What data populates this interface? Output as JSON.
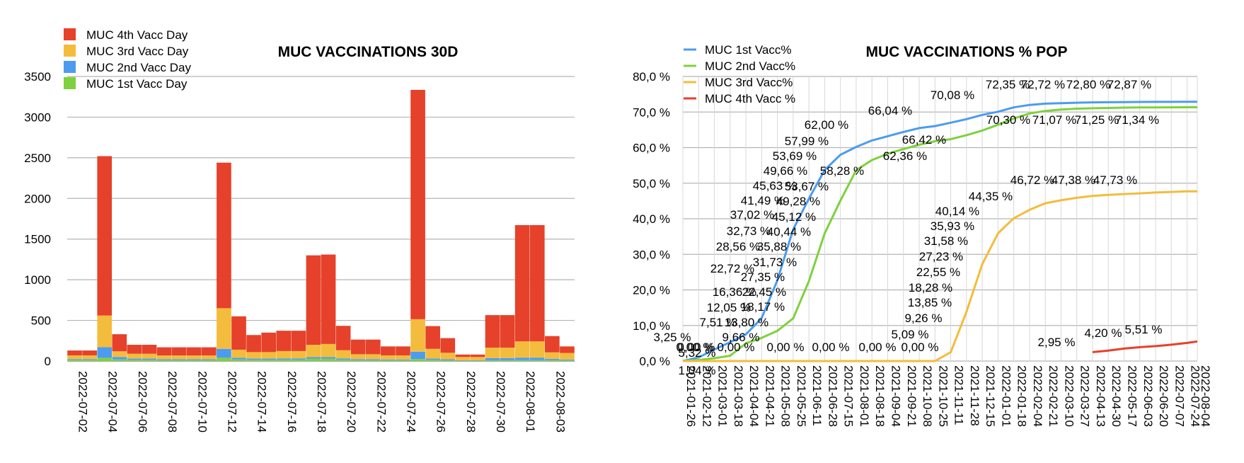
{
  "chart_data": [
    {
      "type": "bar",
      "stacked": true,
      "title": "MUC VACCINATIONS 30D",
      "ylim": [
        0,
        3500
      ],
      "yticks": [
        "0",
        "500",
        "1000",
        "1500",
        "2000",
        "2500",
        "3000",
        "3500"
      ],
      "xtick_labels": [
        "2022-07-02",
        "2022-07-04",
        "2022-07-06",
        "2022-07-08",
        "2022-07-10",
        "2022-07-12",
        "2022-07-14",
        "2022-07-16",
        "2022-07-18",
        "2022-07-20",
        "2022-07-22",
        "2022-07-24",
        "2022-07-26",
        "2022-07-28",
        "2022-07-30",
        "2022-08-01",
        "2022-08-03"
      ],
      "grid": true,
      "legend_position": "top-left",
      "categories": [
        "2022-07-02",
        "2022-07-03",
        "2022-07-04",
        "2022-07-05",
        "2022-07-06",
        "2022-07-07",
        "2022-07-08",
        "2022-07-09",
        "2022-07-10",
        "2022-07-11",
        "2022-07-12",
        "2022-07-13",
        "2022-07-14",
        "2022-07-15",
        "2022-07-16",
        "2022-07-17",
        "2022-07-18",
        "2022-07-19",
        "2022-07-20",
        "2022-07-21",
        "2022-07-22",
        "2022-07-23",
        "2022-07-24",
        "2022-07-25",
        "2022-07-26",
        "2022-07-27",
        "2022-07-28",
        "2022-07-29",
        "2022-07-30",
        "2022-07-31",
        "2022-08-01",
        "2022-08-02",
        "2022-08-03",
        "2022-08-04"
      ],
      "series": [
        {
          "name": "MUC 1st Vacc Day",
          "color": "#7ed13e",
          "values": [
            15,
            15,
            40,
            20,
            15,
            15,
            12,
            12,
            12,
            12,
            40,
            20,
            15,
            15,
            18,
            18,
            30,
            30,
            18,
            12,
            12,
            10,
            10,
            25,
            15,
            10,
            5,
            5,
            10,
            10,
            12,
            12,
            12,
            10
          ]
        },
        {
          "name": "MUC 2nd Vacc Day",
          "color": "#4b9cf0",
          "values": [
            10,
            10,
            130,
            30,
            15,
            15,
            12,
            12,
            12,
            12,
            110,
            20,
            15,
            15,
            15,
            15,
            20,
            20,
            15,
            12,
            12,
            10,
            10,
            90,
            15,
            12,
            5,
            5,
            25,
            25,
            30,
            30,
            15,
            10
          ]
        },
        {
          "name": "MUC 3rd Vacc Day",
          "color": "#f4bc3c",
          "values": [
            45,
            45,
            390,
            70,
            60,
            60,
            45,
            45,
            45,
            45,
            500,
            100,
            80,
            80,
            90,
            90,
            150,
            160,
            100,
            60,
            60,
            50,
            50,
            400,
            120,
            80,
            40,
            40,
            130,
            130,
            200,
            200,
            80,
            80
          ]
        },
        {
          "name": "MUC 4th Vacc Day",
          "color": "#e6412a",
          "values": [
            60,
            60,
            1960,
            210,
            110,
            110,
            100,
            100,
            100,
            100,
            1790,
            410,
            210,
            240,
            250,
            250,
            1100,
            1100,
            300,
            180,
            180,
            110,
            110,
            2820,
            280,
            180,
            30,
            30,
            400,
            400,
            1430,
            1430,
            200,
            80
          ]
        }
      ]
    },
    {
      "type": "line",
      "title": "MUC VACCINATIONS % POP",
      "ylim": [
        0,
        80
      ],
      "yticks": [
        "0,0 %",
        "10,0 %",
        "20,0 %",
        "30,0 %",
        "40,0 %",
        "50,0 %",
        "60,0 %",
        "70,0 %",
        "80,0 %"
      ],
      "xtick_labels": [
        "2021-01-26",
        "2021-02-12",
        "2021-03-01",
        "2021-03-18",
        "2021-04-04",
        "2021-04-21",
        "2021-05-08",
        "2021-05-25",
        "2021-06-11",
        "2021-06-28",
        "2021-07-15",
        "2021-08-01",
        "2021-08-18",
        "2021-09-04",
        "2021-09-21",
        "2021-10-08",
        "2021-10-25",
        "2021-11-11",
        "2021-11-28",
        "2021-12-15",
        "2022-01-01",
        "2022-01-18",
        "2022-02-04",
        "2022-02-21",
        "2022-03-10",
        "2022-03-27",
        "2022-04-13",
        "2022-04-30",
        "2022-05-17",
        "2022-06-03",
        "2022-06-20",
        "2022-07-07",
        "2022-07-24",
        "2022-08-04"
      ],
      "grid": true,
      "legend_position": "top-left",
      "series": [
        {
          "name": "MUC 1st Vacc%",
          "color": "#4b9cf0",
          "x": [
            "2021-01-26",
            "2021-02-12",
            "2021-03-01",
            "2021-03-18",
            "2021-04-04",
            "2021-04-21",
            "2021-05-08",
            "2021-05-25",
            "2021-06-11",
            "2021-06-28",
            "2021-07-15",
            "2021-08-01",
            "2021-08-18",
            "2021-09-04",
            "2021-09-21",
            "2021-10-08",
            "2021-10-25",
            "2021-11-11",
            "2021-11-28",
            "2021-12-15",
            "2022-01-01",
            "2022-01-18",
            "2022-02-04",
            "2022-02-21",
            "2022-03-10",
            "2022-03-27",
            "2022-04-13",
            "2022-04-30",
            "2022-05-17",
            "2022-06-03",
            "2022-06-20",
            "2022-07-07",
            "2022-07-24",
            "2022-08-04"
          ],
          "y": [
            0.0,
            1.04,
            3.25,
            5.32,
            7.51,
            12.05,
            22.72,
            37.02,
            45.63,
            53.69,
            57.99,
            60.2,
            62.0,
            63.2,
            64.4,
            65.5,
            66.04,
            67.0,
            68.0,
            69.2,
            70.08,
            71.3,
            72.0,
            72.35,
            72.5,
            72.62,
            72.72,
            72.76,
            72.8,
            72.83,
            72.85,
            72.86,
            72.87,
            72.87
          ]
        },
        {
          "name": "MUC 2nd Vacc%",
          "color": "#7ed13e",
          "x": [
            "2021-01-26",
            "2021-02-12",
            "2021-03-01",
            "2021-03-18",
            "2021-04-04",
            "2021-04-21",
            "2021-05-08",
            "2021-05-25",
            "2021-06-11",
            "2021-06-28",
            "2021-07-15",
            "2021-08-01",
            "2021-08-18",
            "2021-09-04",
            "2021-09-21",
            "2021-10-08",
            "2021-10-25",
            "2021-11-11",
            "2021-11-28",
            "2021-12-15",
            "2022-01-01",
            "2022-01-18",
            "2022-02-04",
            "2022-02-21",
            "2022-03-10",
            "2022-03-27",
            "2022-04-13",
            "2022-04-30",
            "2022-05-17",
            "2022-06-03",
            "2022-06-20",
            "2022-07-07",
            "2022-07-24",
            "2022-08-04"
          ],
          "y": [
            0.0,
            0.3,
            0.8,
            1.5,
            5.0,
            6.5,
            8.5,
            12.0,
            22.45,
            35.88,
            45.12,
            53.67,
            56.5,
            58.28,
            59.6,
            60.8,
            61.8,
            62.36,
            63.5,
            64.8,
            66.42,
            68.2,
            69.6,
            70.3,
            70.7,
            70.95,
            71.07,
            71.15,
            71.25,
            71.28,
            71.3,
            71.32,
            71.34,
            71.34
          ]
        },
        {
          "name": "MUC 3rd Vacc%",
          "color": "#f4bc3c",
          "x": [
            "2021-01-26",
            "2021-02-12",
            "2021-03-01",
            "2021-03-18",
            "2021-04-04",
            "2021-04-21",
            "2021-05-08",
            "2021-05-25",
            "2021-06-11",
            "2021-06-28",
            "2021-07-15",
            "2021-08-01",
            "2021-08-18",
            "2021-09-04",
            "2021-09-21",
            "2021-10-08",
            "2021-10-25",
            "2021-11-11",
            "2021-11-28",
            "2021-12-15",
            "2022-01-01",
            "2022-01-18",
            "2022-02-04",
            "2022-02-21",
            "2022-03-10",
            "2022-03-27",
            "2022-04-13",
            "2022-04-30",
            "2022-05-17",
            "2022-06-03",
            "2022-06-20",
            "2022-07-07",
            "2022-07-24",
            "2022-08-04"
          ],
          "y": [
            0,
            0,
            0,
            0,
            0,
            0,
            0,
            0,
            0,
            0,
            0,
            0,
            0,
            0,
            0,
            0,
            0,
            2.5,
            13.85,
            27.23,
            35.93,
            40.14,
            42.5,
            44.35,
            45.2,
            45.9,
            46.4,
            46.72,
            46.95,
            47.15,
            47.38,
            47.55,
            47.73,
            47.73
          ]
        },
        {
          "name": "MUC 4th Vacc %",
          "color": "#e6412a",
          "x": [
            "2022-04-13",
            "2022-04-30",
            "2022-05-17",
            "2022-06-03",
            "2022-06-20",
            "2022-07-07",
            "2022-07-24",
            "2022-08-04"
          ],
          "y": [
            2.5,
            2.95,
            3.5,
            3.9,
            4.2,
            4.6,
            5.1,
            5.51
          ]
        }
      ],
      "data_labels": [
        {
          "series": "MUC 1st Vacc%",
          "labels": [
            "0,00 %",
            "1,04 %",
            "3,25 %",
            "5,32 %",
            "7,51 %",
            "12,05 %",
            "16,36 %",
            "22,72 %",
            "28,56 %",
            "32,73 %",
            "37,02 %",
            "41,49 %",
            "45,63 %",
            "49,66 %",
            "53,69 %",
            "57,99 %",
            "62,00 %",
            "66,04 %",
            "70,08 %",
            "72,35 %",
            "72,72 %",
            "72,80 %",
            "72,87 %"
          ]
        },
        {
          "series": "MUC 2nd Vacc%",
          "labels": [
            "0,00 %",
            "9,66 %",
            "13,80 %",
            "18,17 %",
            "22,45 %",
            "27,35 %",
            "31,73 %",
            "35,88 %",
            "40,44 %",
            "45,12 %",
            "49,28 %",
            "53,67 %",
            "58,28 %",
            "62,36 %",
            "66,42 %",
            "70,30 %",
            "71,07 %",
            "71,25 %",
            "71,34 %"
          ]
        },
        {
          "series": "MUC 3rd Vacc%",
          "labels": [
            "0,00 %",
            "0,00 %",
            "0,00 %",
            "0,00 %",
            "0,00 %",
            "5,09 %",
            "9,26 %",
            "13,85 %",
            "18,28 %",
            "22,55 %",
            "27,23 %",
            "31,58 %",
            "35,93 %",
            "40,14 %",
            "44,35 %",
            "46,72 %",
            "47,38 %",
            "47,73 %"
          ]
        },
        {
          "series": "MUC 4th Vacc %",
          "labels": [
            "2,95 %",
            "4,20 %",
            "5,51 %"
          ]
        }
      ]
    }
  ]
}
